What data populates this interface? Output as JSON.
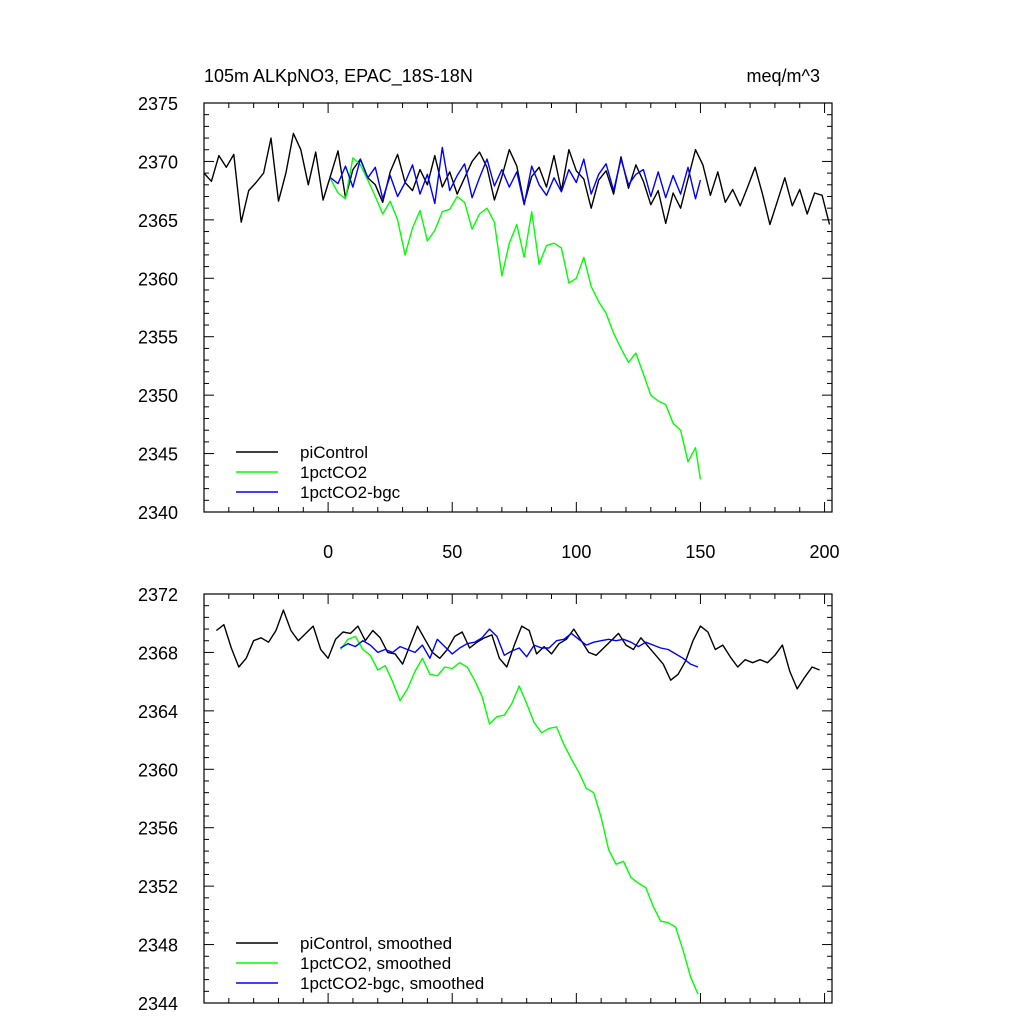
{
  "title_left": "105m ALKpNO3, EPAC_18S-18N",
  "title_right": "meq/m^3",
  "chart_data": [
    {
      "type": "line",
      "title": "105m ALKpNO3, EPAC_18S-18N",
      "units": "meq/m^3",
      "xlim": [
        -50,
        203
      ],
      "ylim": [
        2340,
        2375
      ],
      "xticks": [
        0,
        50,
        100,
        150,
        200
      ],
      "yticks": [
        2340,
        2345,
        2350,
        2355,
        2360,
        2365,
        2370,
        2375
      ],
      "legend_position": "bottom-left",
      "series": [
        {
          "name": "piControl",
          "color": "#000000",
          "x": [
            -50,
            -47,
            -44,
            -41,
            -38,
            -35,
            -32,
            -29,
            -26,
            -23,
            -20,
            -17,
            -14,
            -11,
            -8,
            -5,
            -2,
            1,
            4,
            7,
            10,
            13,
            16,
            19,
            22,
            25,
            28,
            31,
            34,
            37,
            40,
            43,
            46,
            49,
            52,
            55,
            58,
            61,
            64,
            67,
            70,
            73,
            76,
            79,
            82,
            85,
            88,
            91,
            94,
            97,
            100,
            103,
            106,
            109,
            112,
            115,
            118,
            121,
            124,
            127,
            130,
            133,
            136,
            139,
            142,
            145,
            148,
            151,
            154,
            157,
            160,
            163,
            166,
            169,
            172,
            175,
            178,
            181,
            184,
            187,
            190,
            193,
            196,
            199,
            202
          ],
          "values": [
            2369.0,
            2368.3,
            2370.5,
            2369.5,
            2370.6,
            2364.8,
            2367.5,
            2368.2,
            2369.0,
            2372.0,
            2366.6,
            2369.0,
            2372.4,
            2371.0,
            2368.0,
            2370.8,
            2366.7,
            2368.8,
            2370.9,
            2366.9,
            2369.3,
            2370.2,
            2368.6,
            2368.0,
            2366.5,
            2369.1,
            2370.6,
            2368.2,
            2367.5,
            2369.3,
            2368.0,
            2370.5,
            2367.8,
            2369.1,
            2367.2,
            2368.6,
            2370.0,
            2370.8,
            2369.5,
            2366.7,
            2368.7,
            2371.0,
            2369.6,
            2366.4,
            2368.7,
            2369.5,
            2367.8,
            2370.5,
            2367.5,
            2371.0,
            2369.2,
            2368.5,
            2366.0,
            2368.4,
            2369.2,
            2367.2,
            2370.4,
            2367.7,
            2369.7,
            2368.3,
            2366.3,
            2367.5,
            2364.7,
            2367.3,
            2366.0,
            2368.5,
            2371.0,
            2369.7,
            2367.1,
            2369.1,
            2366.5,
            2367.6,
            2366.2,
            2367.8,
            2369.5,
            2367.2,
            2364.6,
            2366.6,
            2368.6,
            2366.2,
            2367.6,
            2365.5,
            2367.3,
            2367.1,
            2364.6
          ]
        },
        {
          "name": "1pctCO2",
          "color": "#00ff00",
          "x": [
            1,
            4,
            7,
            10,
            13,
            16,
            19,
            22,
            25,
            28,
            31,
            34,
            37,
            40,
            43,
            46,
            49,
            52,
            55,
            58,
            61,
            64,
            67,
            70,
            73,
            76,
            79,
            82,
            85,
            88,
            91,
            94,
            97,
            100,
            103,
            106,
            109,
            112,
            115,
            118,
            121,
            124,
            127,
            130,
            133,
            136,
            139,
            142,
            145,
            148,
            150
          ],
          "values": [
            2368.5,
            2367.3,
            2366.8,
            2370.3,
            2369.7,
            2368.4,
            2367.0,
            2365.5,
            2366.6,
            2365.0,
            2362.0,
            2364.3,
            2365.8,
            2363.2,
            2364.1,
            2365.7,
            2365.9,
            2367.0,
            2366.5,
            2364.2,
            2365.5,
            2366.0,
            2364.8,
            2360.2,
            2363.0,
            2364.6,
            2361.8,
            2365.7,
            2361.2,
            2362.8,
            2363.0,
            2362.6,
            2359.6,
            2360.0,
            2361.8,
            2359.3,
            2358.0,
            2357.0,
            2355.3,
            2354.0,
            2352.8,
            2353.6,
            2351.8,
            2350.0,
            2349.5,
            2349.2,
            2347.6,
            2347.0,
            2344.3,
            2345.5,
            2342.8
          ]
        },
        {
          "name": "1pctCO2-bgc",
          "color": "#0000ff",
          "x": [
            1,
            4,
            7,
            10,
            13,
            16,
            19,
            22,
            25,
            28,
            31,
            34,
            37,
            40,
            43,
            46,
            49,
            52,
            55,
            58,
            61,
            64,
            67,
            70,
            73,
            76,
            79,
            82,
            85,
            88,
            91,
            94,
            97,
            100,
            103,
            106,
            109,
            112,
            115,
            118,
            121,
            124,
            127,
            130,
            133,
            136,
            139,
            142,
            145,
            148,
            150
          ],
          "values": [
            2368.6,
            2368.1,
            2369.6,
            2367.8,
            2370.2,
            2368.6,
            2369.5,
            2366.8,
            2368.8,
            2367.0,
            2368.2,
            2369.7,
            2367.2,
            2368.9,
            2366.4,
            2371.2,
            2367.5,
            2368.8,
            2369.8,
            2366.9,
            2368.6,
            2370.2,
            2367.9,
            2369.3,
            2367.8,
            2369.1,
            2366.3,
            2369.6,
            2368.0,
            2367.1,
            2368.6,
            2367.4,
            2369.3,
            2368.2,
            2370.2,
            2367.2,
            2368.9,
            2369.8,
            2367.5,
            2370.2,
            2368.0,
            2368.9,
            2369.3,
            2367.0,
            2369.1,
            2366.9,
            2368.8,
            2367.2,
            2369.5,
            2366.8,
            2368.4
          ]
        }
      ]
    },
    {
      "type": "line",
      "xlim": [
        -50,
        203
      ],
      "ylim": [
        2344,
        2372
      ],
      "yticks": [
        2344,
        2348,
        2352,
        2356,
        2360,
        2364,
        2368,
        2372
      ],
      "legend_position": "bottom-left",
      "series": [
        {
          "name": "piControl, smoothed",
          "color": "#000000",
          "x": [
            -45,
            -42,
            -39,
            -36,
            -33,
            -30,
            -27,
            -24,
            -21,
            -18,
            -15,
            -12,
            -9,
            -6,
            -3,
            0,
            3,
            6,
            9,
            12,
            15,
            18,
            21,
            24,
            27,
            30,
            33,
            36,
            39,
            42,
            45,
            48,
            51,
            54,
            57,
            60,
            63,
            66,
            69,
            72,
            75,
            78,
            81,
            84,
            87,
            90,
            93,
            96,
            99,
            102,
            105,
            108,
            111,
            114,
            117,
            120,
            123,
            126,
            129,
            132,
            135,
            138,
            141,
            144,
            147,
            150,
            153,
            156,
            159,
            162,
            165,
            168,
            171,
            174,
            177,
            180,
            183,
            186,
            189,
            192,
            195,
            198
          ],
          "values": [
            2369.5,
            2369.9,
            2368.3,
            2367.0,
            2367.6,
            2368.8,
            2369.0,
            2368.7,
            2369.5,
            2370.9,
            2369.5,
            2368.8,
            2369.3,
            2369.8,
            2368.2,
            2367.6,
            2368.9,
            2369.4,
            2369.3,
            2369.8,
            2368.8,
            2369.5,
            2369.0,
            2368.0,
            2367.9,
            2367.2,
            2368.5,
            2369.8,
            2368.9,
            2368.0,
            2367.6,
            2368.2,
            2369.1,
            2369.4,
            2368.3,
            2368.7,
            2369.0,
            2369.2,
            2367.6,
            2367.0,
            2368.5,
            2369.8,
            2369.5,
            2367.9,
            2368.4,
            2367.9,
            2368.6,
            2368.9,
            2369.6,
            2368.8,
            2368.0,
            2367.8,
            2368.3,
            2368.8,
            2369.3,
            2368.5,
            2368.2,
            2369.0,
            2368.4,
            2367.8,
            2367.2,
            2366.1,
            2366.5,
            2367.4,
            2368.8,
            2369.8,
            2369.4,
            2368.2,
            2368.5,
            2367.7,
            2367.0,
            2367.5,
            2367.3,
            2367.5,
            2367.3,
            2367.8,
            2368.5,
            2366.7,
            2365.5,
            2366.3,
            2367.0,
            2366.8
          ]
        },
        {
          "name": "1pctCO2, smoothed",
          "color": "#00ff00",
          "x": [
            5,
            8,
            11,
            14,
            17,
            20,
            23,
            26,
            29,
            32,
            35,
            38,
            41,
            44,
            47,
            50,
            53,
            56,
            59,
            62,
            65,
            68,
            71,
            74,
            77,
            80,
            83,
            86,
            89,
            92,
            95,
            98,
            101,
            104,
            107,
            110,
            113,
            116,
            119,
            122,
            125,
            128,
            131,
            134,
            137,
            140,
            143,
            146,
            149
          ],
          "values": [
            2368.2,
            2368.9,
            2369.1,
            2368.2,
            2367.8,
            2366.8,
            2367.1,
            2366.0,
            2364.7,
            2365.5,
            2366.7,
            2367.6,
            2366.5,
            2366.4,
            2367.0,
            2366.9,
            2367.3,
            2367.0,
            2366.1,
            2365.0,
            2363.1,
            2363.6,
            2363.7,
            2364.5,
            2365.7,
            2364.5,
            2363.2,
            2362.5,
            2362.8,
            2362.9,
            2361.7,
            2360.7,
            2359.8,
            2358.7,
            2358.4,
            2356.7,
            2354.5,
            2353.5,
            2353.7,
            2352.6,
            2352.2,
            2351.9,
            2350.6,
            2349.6,
            2349.5,
            2349.2,
            2347.6,
            2345.8,
            2344.6
          ]
        },
        {
          "name": "1pctCO2-bgc, smoothed",
          "color": "#0000ff",
          "x": [
            5,
            8,
            11,
            14,
            17,
            20,
            23,
            26,
            29,
            32,
            35,
            38,
            41,
            44,
            47,
            50,
            53,
            56,
            59,
            62,
            65,
            68,
            71,
            74,
            77,
            80,
            83,
            86,
            89,
            92,
            95,
            98,
            101,
            104,
            107,
            110,
            113,
            116,
            119,
            122,
            125,
            128,
            131,
            134,
            137,
            140,
            143,
            146,
            149
          ],
          "values": [
            2368.3,
            2368.6,
            2368.4,
            2368.8,
            2368.5,
            2368.0,
            2368.2,
            2368.0,
            2368.4,
            2368.2,
            2368.0,
            2368.5,
            2367.6,
            2368.9,
            2368.4,
            2367.9,
            2368.3,
            2368.6,
            2368.7,
            2369.0,
            2369.6,
            2369.1,
            2367.8,
            2368.1,
            2368.3,
            2367.7,
            2368.5,
            2368.3,
            2368.3,
            2368.8,
            2368.9,
            2369.3,
            2368.9,
            2368.5,
            2368.7,
            2368.8,
            2368.9,
            2368.8,
            2368.9,
            2368.7,
            2368.4,
            2368.7,
            2368.5,
            2368.3,
            2368.2,
            2367.9,
            2367.6,
            2367.2,
            2367.0
          ]
        }
      ]
    }
  ]
}
